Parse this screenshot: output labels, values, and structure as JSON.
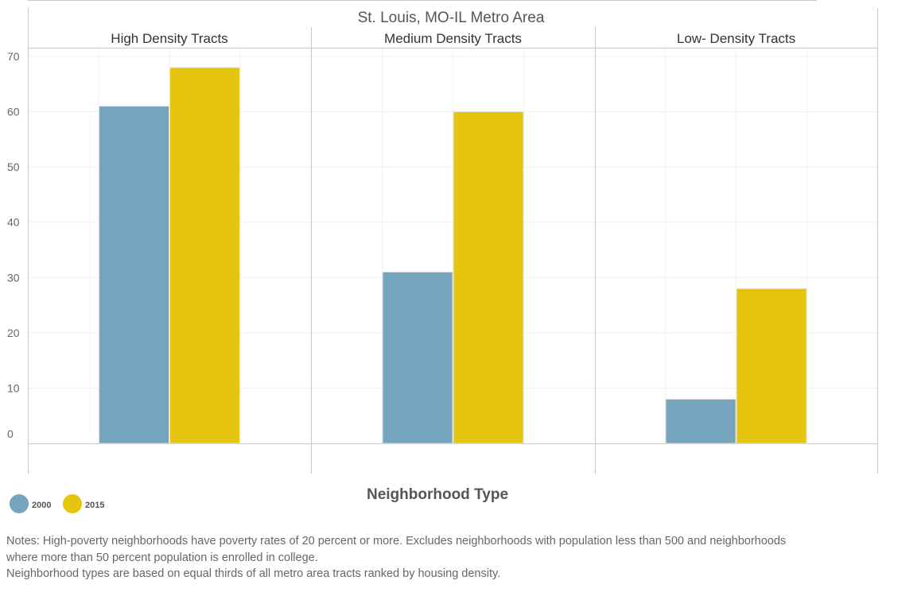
{
  "chart_data": {
    "type": "bar",
    "title": "St. Louis, MO-IL Metro Area",
    "panels": [
      "High Density Tracts",
      "Medium Density Tracts",
      "Low- Density Tracts"
    ],
    "series": [
      {
        "name": "2000",
        "color": "#74a5bd",
        "values": [
          61,
          31,
          8
        ]
      },
      {
        "name": "2015",
        "color": "#e6c511",
        "values": [
          68,
          60,
          28
        ]
      }
    ],
    "xlabel": "Neighborhood Type",
    "ylabel": "",
    "ylim": [
      0,
      70
    ],
    "yticks": [
      0,
      10,
      20,
      30,
      40,
      50,
      60,
      70
    ],
    "grid": true,
    "legend_position": "bottom-left"
  },
  "notes": {
    "line1": "Notes: High-poverty neighborhoods have poverty rates of 20 percent or more. Excludes neighborhoods with population less than 500 and neighborhoods",
    "line2": "where more than 50 percent population is enrolled in college.",
    "line3": "Neighborhood types are based on equal thirds of all metro area tracts ranked by housing density."
  }
}
